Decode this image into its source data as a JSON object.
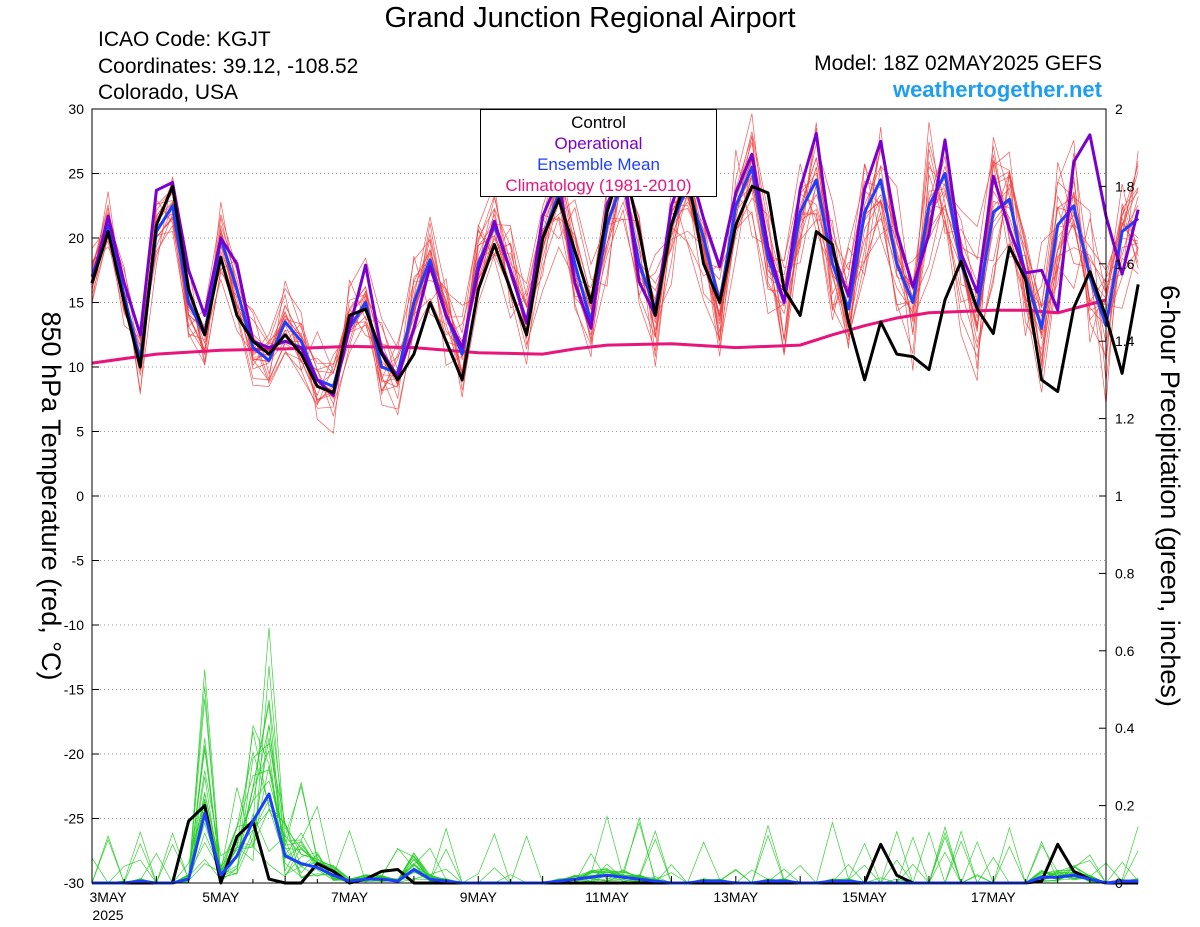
{
  "header": {
    "title": "Grand Junction Regional Airport",
    "icao": "ICAO Code: KGJT",
    "coords": "Coordinates: 39.12, -108.52",
    "region": "Colorado, USA",
    "model": "Model: 18Z 02MAY2025 GEFS",
    "site": "weathertogether.net"
  },
  "legend": {
    "control": "Control",
    "operational": "Operational",
    "ens_mean": "Ensemble Mean",
    "climo": "Climatology (1981-2010)"
  },
  "colors": {
    "control": "#000000",
    "operational": "#7a00d0",
    "ens_mean": "#1f3fff",
    "climo": "#e8157a",
    "members_temp": "#f04040",
    "members_precip": "#22cc22",
    "site": "#1e9ef0"
  },
  "chart_data": {
    "type": "line",
    "ylabel_left": "850 hPa Temperature (red, °C)",
    "ylabel_right": "6-hour Precipitation (green, inches)",
    "ylim_left": [
      -30,
      30
    ],
    "ylim_right": [
      0,
      2
    ],
    "yticks_left": [
      30,
      25,
      20,
      15,
      10,
      5,
      0,
      -5,
      -10,
      -15,
      -20,
      -25,
      -30
    ],
    "yticks_right": [
      2,
      1.8,
      1.6,
      1.4,
      1.2,
      1,
      0.8,
      0.6,
      0.4,
      0.2,
      0
    ],
    "x_start_day": 3,
    "x_end_day": 18.75,
    "x_step_hours": 6,
    "x_ticks": [
      {
        "day": 3,
        "label": "3MAY",
        "sub": "2025"
      },
      {
        "day": 5,
        "label": "5MAY"
      },
      {
        "day": 7,
        "label": "7MAY"
      },
      {
        "day": 9,
        "label": "9MAY"
      },
      {
        "day": 11,
        "label": "11MAY"
      },
      {
        "day": 13,
        "label": "13MAY"
      },
      {
        "day": 15,
        "label": "15MAY"
      },
      {
        "day": 17,
        "label": "17MAY"
      }
    ],
    "grid": "horizontal dotted",
    "temp_series": [
      {
        "name": "Control",
        "key": "control",
        "values": [
          16.5,
          20.5,
          15,
          10,
          21,
          24,
          16,
          12.5,
          18.5,
          14,
          12,
          11,
          12.5,
          11,
          8.5,
          8,
          14,
          14.5,
          11,
          9,
          11,
          15,
          12,
          9,
          16,
          19.5,
          16,
          12.5,
          20,
          23,
          19,
          15,
          22,
          26,
          20.5,
          14,
          21,
          25,
          18,
          15,
          21,
          24,
          23.5,
          16,
          14,
          20.5,
          19.5,
          13.5,
          9,
          13.5,
          11,
          10.8,
          9.8,
          15.2,
          18.2,
          14.5,
          12.6,
          19.3,
          16.8,
          9,
          8.1,
          14.6,
          17.4,
          13.9,
          9.5,
          16.4
        ]
      },
      {
        "name": "Operational",
        "key": "operational",
        "values": [
          16.5,
          21.7,
          16.5,
          12.5,
          23.7,
          24.3,
          17.5,
          14,
          20,
          18,
          12,
          11.5,
          12,
          11.5,
          9,
          7.8,
          13,
          17.9,
          11.2,
          9.2,
          13,
          17.8,
          14,
          11.5,
          17.5,
          21.3,
          17.4,
          13.4,
          21.7,
          24.6,
          16.5,
          13,
          22.6,
          25.4,
          16.6,
          14,
          22.5,
          26,
          21.5,
          17.8,
          23.5,
          26.5,
          19.3,
          15,
          23.8,
          28.1,
          19,
          15.5,
          23.8,
          27.5,
          20.5,
          16.2,
          20.3,
          27.6,
          18.8,
          15.8,
          24.8,
          20.7,
          17.3,
          17.5,
          14.4,
          25.9,
          28,
          21.7,
          17.2,
          22.2
        ]
      },
      {
        "name": "Ensemble Mean",
        "key": "ens_mean",
        "values": [
          17,
          21,
          15.5,
          10.5,
          20.5,
          22.5,
          15,
          12.5,
          20,
          16,
          11.5,
          10.5,
          13.5,
          12,
          9,
          8.5,
          13,
          15,
          10,
          9.5,
          15,
          18.3,
          14,
          11,
          18,
          21,
          17.5,
          13.5,
          20,
          23.5,
          18,
          13.5,
          21,
          24.5,
          18,
          14.5,
          21,
          24,
          20,
          15,
          22.5,
          25.5,
          18.5,
          15,
          22,
          24.5,
          18,
          14.5,
          22,
          24.5,
          18,
          15,
          22.5,
          25,
          18,
          14.5,
          22,
          23,
          17,
          13,
          21,
          22.5,
          17,
          13.2,
          20.5,
          21.5
        ]
      }
    ],
    "climo_series": {
      "name": "Climatology (1981-2010)",
      "key": "climo",
      "points": [
        [
          3,
          10.3
        ],
        [
          4,
          11
        ],
        [
          5,
          11.3
        ],
        [
          6,
          11.4
        ],
        [
          7,
          11.6
        ],
        [
          8,
          11.5
        ],
        [
          9,
          11.1
        ],
        [
          10,
          11
        ],
        [
          10.5,
          11.4
        ],
        [
          11,
          11.7
        ],
        [
          12,
          11.8
        ],
        [
          13,
          11.5
        ],
        [
          14,
          11.7
        ],
        [
          14.5,
          12.5
        ],
        [
          15,
          13.2
        ],
        [
          15.5,
          13.8
        ],
        [
          16,
          14.2
        ],
        [
          17,
          14.4
        ],
        [
          17.5,
          14.4
        ],
        [
          18,
          14.2
        ],
        [
          18.75,
          15.2
        ]
      ]
    },
    "precip_series": [
      {
        "name": "Control",
        "key": "control",
        "values": [
          0,
          0,
          0,
          0,
          0,
          0,
          0.16,
          0.2,
          0,
          0.12,
          0.16,
          0.01,
          0,
          0,
          0.05,
          0.03,
          0,
          0.01,
          0.03,
          0.035,
          0,
          0,
          0,
          0,
          0,
          0,
          0,
          0,
          0,
          0,
          0,
          0,
          0,
          0,
          0,
          0,
          0,
          0,
          0,
          0,
          0,
          0,
          0,
          0,
          0,
          0,
          0,
          0,
          0,
          0.1,
          0.02,
          0,
          0,
          0,
          0,
          0,
          0,
          0,
          0,
          0.005,
          0.1,
          0.03,
          0.01,
          0,
          0,
          0
        ]
      },
      {
        "name": "Ensemble Mean",
        "key": "ens_mean",
        "values": [
          0,
          0,
          0,
          0.005,
          0,
          0,
          0.01,
          0.18,
          0.02,
          0.07,
          0.16,
          0.23,
          0.07,
          0.05,
          0.04,
          0.02,
          0.005,
          0.01,
          0.01,
          0.005,
          0.035,
          0.01,
          0.005,
          0,
          0,
          0,
          0,
          0,
          0,
          0.005,
          0.01,
          0.015,
          0.02,
          0.015,
          0.01,
          0.005,
          0,
          0,
          0.005,
          0.005,
          0,
          0,
          0.005,
          0.005,
          0,
          0,
          0.005,
          0.005,
          0,
          0,
          0,
          0,
          0,
          0,
          0,
          0,
          0,
          0,
          0,
          0.015,
          0.015,
          0.02,
          0.01,
          0,
          0.005,
          0.005
        ]
      }
    ]
  }
}
